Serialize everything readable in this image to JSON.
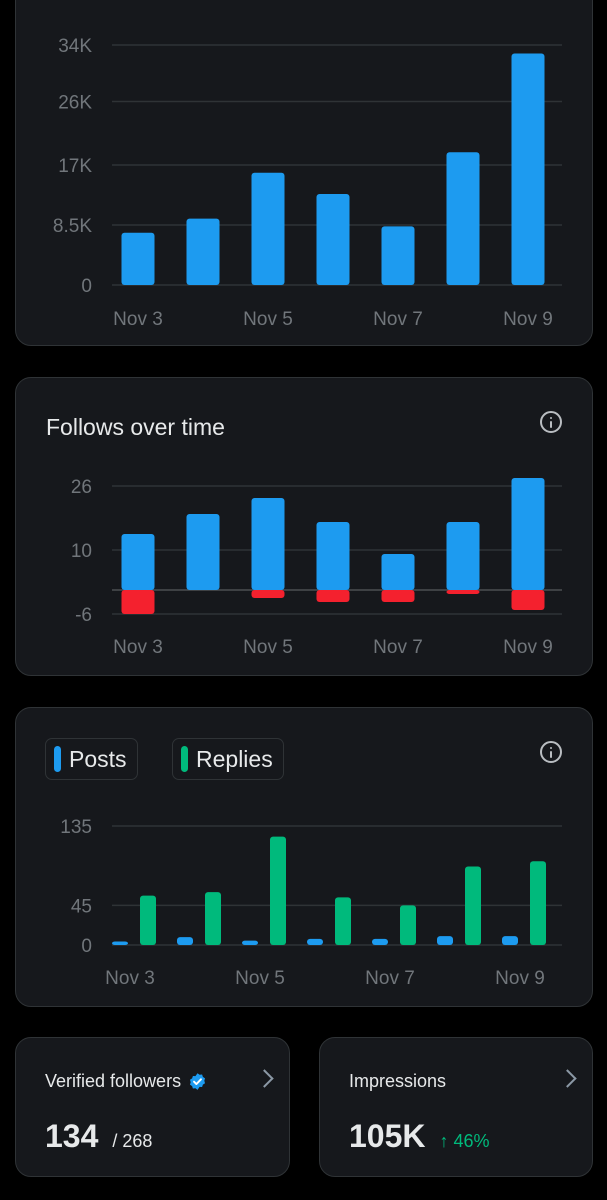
{
  "charts": {
    "impressions_chart": {
      "type": "bar",
      "categories": [
        "Nov 3",
        "Nov 4",
        "Nov 5",
        "Nov 6",
        "Nov 7",
        "Nov 8",
        "Nov 9"
      ],
      "x_tick_labels": [
        "Nov 3",
        "",
        "Nov 5",
        "",
        "Nov 7",
        "",
        "Nov 9"
      ],
      "values": [
        7400,
        9400,
        15900,
        12900,
        8300,
        18800,
        32800
      ],
      "y_ticks": [
        0,
        8500,
        17000,
        26000,
        34000
      ],
      "y_tick_labels": [
        "0",
        "8.5K",
        "17K",
        "26K",
        "34K"
      ],
      "ylim": [
        0,
        34000
      ],
      "color": "#1d9bf0",
      "grid": true
    },
    "follows_chart": {
      "title": "Follows over time",
      "type": "bar",
      "categories": [
        "Nov 3",
        "Nov 4",
        "Nov 5",
        "Nov 6",
        "Nov 7",
        "Nov 8",
        "Nov 9"
      ],
      "x_tick_labels": [
        "Nov 3",
        "",
        "Nov 5",
        "",
        "Nov 7",
        "",
        "Nov 9"
      ],
      "series": [
        {
          "values": [
            14,
            19,
            23,
            17,
            9,
            17,
            28
          ],
          "color": "#1d9bf0"
        },
        {
          "values": [
            -6,
            0,
            -2,
            -3,
            -3,
            -1,
            -5
          ],
          "color": "#f4212e"
        }
      ],
      "y_ticks": [
        -6,
        10,
        26
      ],
      "y_tick_labels": [
        "-6",
        "10",
        "26"
      ],
      "ylim": [
        -6,
        26
      ],
      "grid": true
    },
    "posts_replies_chart": {
      "type": "bar",
      "categories": [
        "Nov 3",
        "Nov 4",
        "Nov 5",
        "Nov 6",
        "Nov 7",
        "Nov 8",
        "Nov 9"
      ],
      "x_tick_labels": [
        "Nov 3",
        "",
        "Nov 5",
        "",
        "Nov 7",
        "",
        "Nov 9"
      ],
      "legend": [
        "Posts",
        "Replies"
      ],
      "series": [
        {
          "name": "Posts",
          "values": [
            4,
            9,
            5,
            7,
            7,
            10,
            10
          ],
          "color": "#1d9bf0"
        },
        {
          "name": "Replies",
          "values": [
            56,
            60,
            123,
            54,
            45,
            89,
            95
          ],
          "color": "#00ba7c"
        }
      ],
      "y_ticks": [
        0,
        45,
        135
      ],
      "y_tick_labels": [
        "0",
        "45",
        "135"
      ],
      "ylim": [
        0,
        135
      ],
      "grid": true
    }
  },
  "stats": {
    "verified_followers": {
      "title": "Verified followers",
      "value": "134",
      "sub": "/ 268",
      "icon": "verified-badge-icon"
    },
    "impressions": {
      "title": "Impressions",
      "value": "105K",
      "change": "↑ 46%",
      "icon": "chevron-right-icon"
    }
  },
  "colors": {
    "accent": "#1d9bf0",
    "positive": "#00ba7c",
    "negative": "#f4212e",
    "card": "#16181c",
    "border": "#2f3336"
  }
}
